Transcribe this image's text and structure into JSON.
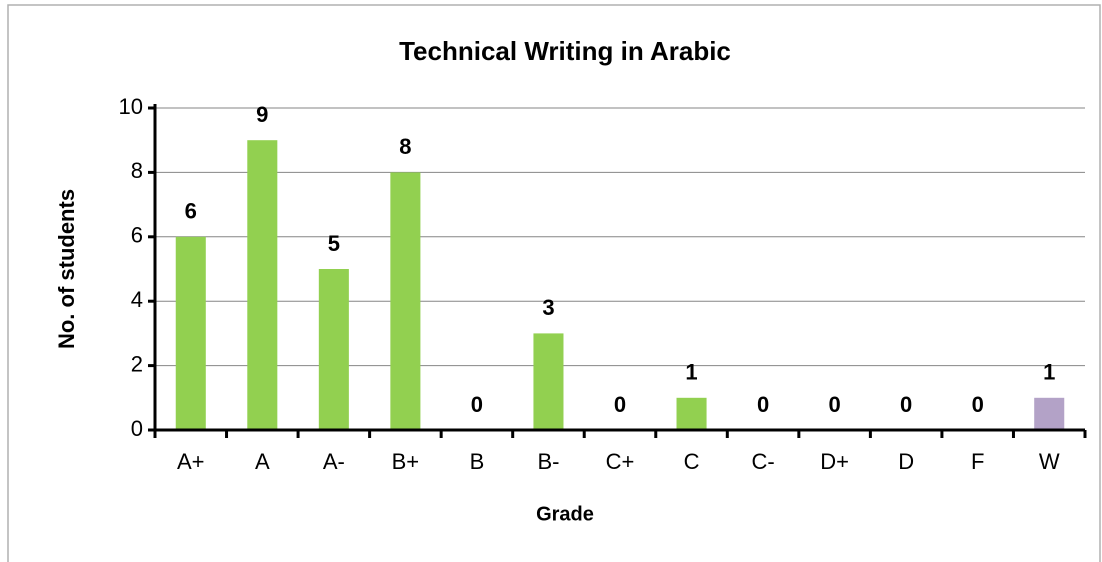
{
  "chart_data": {
    "type": "bar",
    "title": "Technical Writing in Arabic",
    "x_label": "Grade",
    "y_label": "No. of students",
    "categories": [
      "A+",
      "A",
      "A-",
      "B+",
      "B",
      "B-",
      "C+",
      "C",
      "C-",
      "D+",
      "D",
      "F",
      "W"
    ],
    "values": [
      6,
      9,
      5,
      8,
      0,
      3,
      0,
      1,
      0,
      0,
      0,
      0,
      1
    ],
    "colors": [
      "#92d050",
      "#92d050",
      "#92d050",
      "#92d050",
      "#92d050",
      "#92d050",
      "#92d050",
      "#92d050",
      "#92d050",
      "#92d050",
      "#92d050",
      "#92d050",
      "#b3a2c7"
    ],
    "ylim": [
      0,
      10
    ],
    "yticks": [
      0,
      2,
      4,
      6,
      8,
      10
    ],
    "grid": true
  }
}
